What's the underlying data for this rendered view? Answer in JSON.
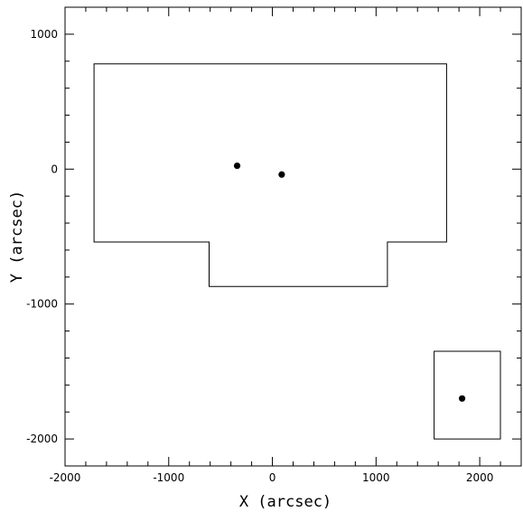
{
  "chart_data": {
    "type": "scatter",
    "title": "",
    "xlabel": "X (arcsec)",
    "ylabel": "Y (arcsec)",
    "xlim": [
      -2000,
      2400
    ],
    "ylim": [
      -2200,
      1200
    ],
    "x_ticks_major": [
      -2000,
      -1000,
      0,
      1000,
      2000
    ],
    "y_ticks_major": [
      -2000,
      -1000,
      0,
      1000
    ],
    "x_tick_labels": [
      "-2000",
      "-1000",
      "0",
      "1000",
      "2000"
    ],
    "y_tick_labels": [
      "-2000",
      "-1000",
      "0",
      "1000"
    ],
    "minor_tick_step": 200,
    "grid": false,
    "legend": "none",
    "colors": {
      "line": "#000000",
      "background": "#ffffff"
    },
    "points": [
      {
        "x": -340,
        "y": 25
      },
      {
        "x": 90,
        "y": -40
      },
      {
        "x": 1830,
        "y": -1700
      }
    ],
    "outlines": [
      {
        "name": "field-outline",
        "polygon": [
          [
            -1720,
            780
          ],
          [
            1680,
            780
          ],
          [
            1680,
            -540
          ],
          [
            1110,
            -540
          ],
          [
            1110,
            -870
          ],
          [
            -610,
            -870
          ],
          [
            -610,
            -540
          ],
          [
            -1720,
            -540
          ]
        ]
      },
      {
        "name": "small-field-outline",
        "polygon": [
          [
            1560,
            -1350
          ],
          [
            2200,
            -1350
          ],
          [
            2200,
            -2000
          ],
          [
            1560,
            -2000
          ]
        ]
      }
    ]
  }
}
